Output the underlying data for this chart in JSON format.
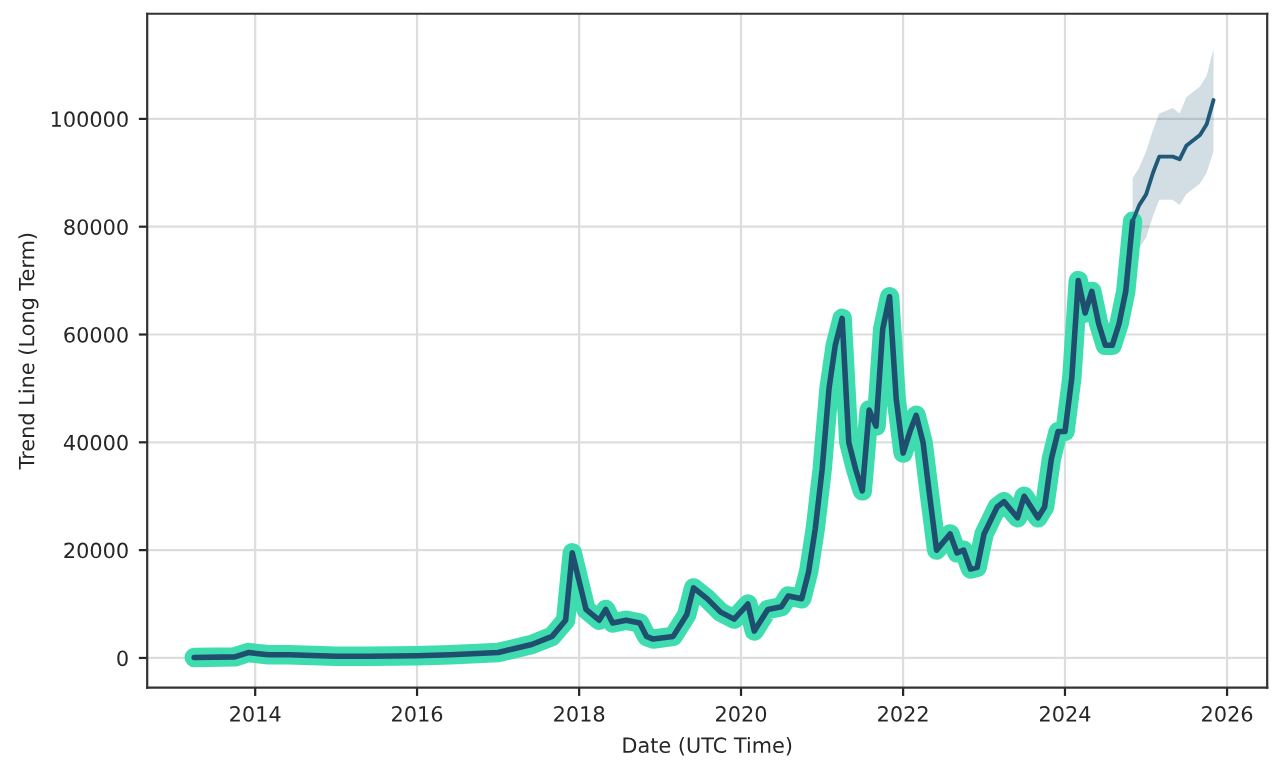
{
  "chart_data": {
    "type": "line",
    "xlabel": "Date (UTC Time)",
    "ylabel": "Trend Line (Long Term)",
    "xlim": [
      "2012-09",
      "2026-07"
    ],
    "xticks": [
      "2014",
      "2016",
      "2018",
      "2020",
      "2022",
      "2024",
      "2026"
    ],
    "ylim": [
      -5500,
      119500
    ],
    "yticks": [
      0,
      20000,
      40000,
      60000,
      80000,
      100000
    ],
    "grid": true,
    "series": [
      {
        "color": "#1f4e6e",
        "x": [
          "2013-04",
          "2013-10",
          "2013-12",
          "2014-03",
          "2014-06",
          "2015-01",
          "2015-06",
          "2016-01",
          "2016-06",
          "2017-01",
          "2017-06",
          "2017-09",
          "2017-11",
          "2017-12",
          "2018-02",
          "2018-04",
          "2018-05",
          "2018-06",
          "2018-08",
          "2018-10",
          "2018-11",
          "2018-12",
          "2019-03",
          "2019-05",
          "2019-06",
          "2019-08",
          "2019-10",
          "2019-12",
          "2020-02",
          "2020-03",
          "2020-05",
          "2020-07",
          "2020-08",
          "2020-10",
          "2020-11",
          "2020-12",
          "2021-01",
          "2021-02",
          "2021-03",
          "2021-04",
          "2021-05",
          "2021-06",
          "2021-07",
          "2021-08",
          "2021-09",
          "2021-10",
          "2021-11",
          "2021-12",
          "2022-01",
          "2022-02",
          "2022-03",
          "2022-04",
          "2022-05",
          "2022-06",
          "2022-08",
          "2022-09",
          "2022-10",
          "2022-11",
          "2022-12",
          "2023-01",
          "2023-03",
          "2023-04",
          "2023-06",
          "2023-07",
          "2023-09",
          "2023-10",
          "2023-11",
          "2023-12",
          "2024-01",
          "2024-02",
          "2024-03",
          "2024-04",
          "2024-05",
          "2024-06",
          "2024-07",
          "2024-08",
          "2024-09",
          "2024-10",
          "2024-11"
        ],
        "values": [
          100,
          200,
          1000,
          600,
          600,
          300,
          300,
          400,
          600,
          1000,
          2500,
          4000,
          7000,
          19500,
          9000,
          7000,
          9000,
          6500,
          7000,
          6500,
          4000,
          3500,
          4000,
          8000,
          13000,
          11000,
          8500,
          7200,
          10000,
          5000,
          9000,
          9500,
          11500,
          11000,
          16000,
          24000,
          35000,
          50000,
          58000,
          63000,
          40000,
          35000,
          31000,
          46000,
          43000,
          61000,
          67000,
          48000,
          38000,
          42000,
          45000,
          40000,
          30000,
          20000,
          23000,
          19500,
          20000,
          16500,
          16800,
          23000,
          28000,
          29000,
          26000,
          30000,
          26000,
          28000,
          37000,
          42000,
          42000,
          52000,
          70000,
          64000,
          68000,
          62000,
          58000,
          58000,
          62000,
          68000,
          81000
        ]
      },
      {
        "color": "#1f5a7a",
        "x": [
          "2024-11",
          "2024-12",
          "2025-01",
          "2025-02",
          "2025-03",
          "2025-05",
          "2025-06",
          "2025-07",
          "2025-09",
          "2025-10",
          "2025-11"
        ],
        "values": [
          81000,
          84000,
          86000,
          90000,
          93000,
          93000,
          92500,
          95000,
          97000,
          99000,
          103500
        ],
        "lower": [
          77000,
          76000,
          78000,
          82000,
          85000,
          85000,
          84000,
          86000,
          88000,
          90000,
          94000
        ],
        "upper": [
          89000,
          91000,
          94000,
          98000,
          101000,
          102000,
          101000,
          104000,
          106000,
          108000,
          113000
        ]
      }
    ]
  }
}
